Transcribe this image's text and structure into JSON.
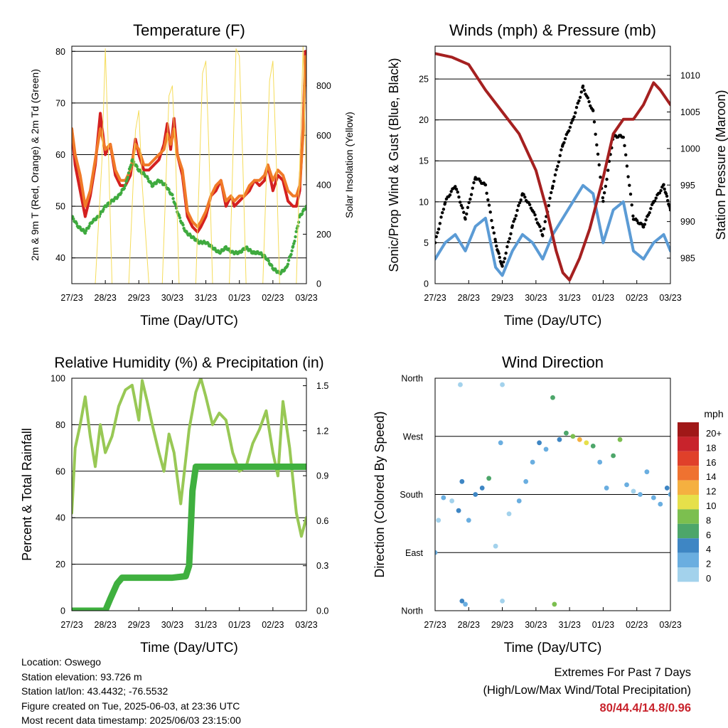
{
  "chart_data": [
    {
      "type": "line",
      "title": "Temperature (F)",
      "xlabel": "Time (Day/UTC)",
      "ylabel": "2m & 9m T (Red, Orange) & 2m Td (Green)",
      "y2label": "Solar Insolation (Yellow)",
      "x_ticks": [
        "27/23",
        "28/23",
        "29/23",
        "30/23",
        "31/23",
        "01/23",
        "02/23",
        "03/23"
      ],
      "ylim": [
        35,
        81
      ],
      "y_ticks": [
        40,
        50,
        60,
        70,
        80
      ],
      "y2lim": [
        0,
        960
      ],
      "y2_ticks": [
        0,
        200,
        400,
        600,
        800
      ],
      "x_days": [
        0,
        7
      ],
      "grid": "horizontal",
      "series": [
        {
          "name": "2m T",
          "color": "#d42020",
          "axis": "left",
          "style": "line",
          "x": [
            0,
            0.1,
            0.25,
            0.4,
            0.55,
            0.7,
            0.85,
            1.0,
            1.15,
            1.3,
            1.45,
            1.6,
            1.75,
            1.9,
            2.0,
            2.15,
            2.3,
            2.45,
            2.6,
            2.75,
            2.85,
            2.95,
            3.05,
            3.15,
            3.3,
            3.45,
            3.6,
            3.75,
            3.85,
            4.0,
            4.15,
            4.3,
            4.45,
            4.6,
            4.75,
            4.85,
            5.0,
            5.15,
            5.3,
            5.45,
            5.6,
            5.75,
            5.85,
            6.0,
            6.15,
            6.3,
            6.45,
            6.6,
            6.7,
            6.8,
            6.9,
            6.97,
            7.0
          ],
          "y": [
            65,
            58,
            53,
            48,
            52,
            58,
            68,
            60,
            62,
            56,
            54,
            54,
            56,
            63,
            60,
            57,
            57,
            58,
            59,
            62,
            66,
            61,
            67,
            60,
            56,
            48,
            46,
            45,
            46,
            48,
            52,
            53,
            55,
            50,
            52,
            50,
            51,
            52,
            53,
            55,
            54,
            55,
            58,
            53,
            56,
            55,
            51,
            50,
            50,
            53,
            65,
            80,
            77
          ]
        },
        {
          "name": "9m T",
          "color": "#f07a28",
          "axis": "left",
          "style": "line",
          "x": [
            0,
            0.1,
            0.25,
            0.4,
            0.55,
            0.7,
            0.85,
            1.0,
            1.15,
            1.3,
            1.45,
            1.6,
            1.75,
            1.9,
            2.0,
            2.15,
            2.3,
            2.45,
            2.6,
            2.75,
            2.85,
            2.95,
            3.05,
            3.15,
            3.3,
            3.45,
            3.6,
            3.75,
            3.85,
            4.0,
            4.15,
            4.3,
            4.45,
            4.6,
            4.75,
            4.85,
            5.0,
            5.15,
            5.3,
            5.45,
            5.6,
            5.75,
            5.85,
            6.0,
            6.15,
            6.3,
            6.45,
            6.6,
            6.7,
            6.8,
            6.9,
            6.97,
            7.0
          ],
          "y": [
            65,
            60,
            56,
            50,
            53,
            59,
            65,
            61,
            62,
            57,
            55,
            55,
            57,
            62,
            61,
            58,
            58,
            59,
            60,
            61,
            64,
            62,
            65,
            60,
            57,
            49,
            47,
            46,
            47,
            49,
            52,
            54,
            55,
            51,
            52,
            51,
            52,
            52,
            54,
            55,
            55,
            56,
            58,
            55,
            57,
            56,
            53,
            52,
            52,
            54,
            64,
            79,
            76
          ]
        },
        {
          "name": "2m Td",
          "color": "#3faa3f",
          "axis": "left",
          "style": "dots",
          "x": [
            0,
            0.2,
            0.4,
            0.6,
            0.8,
            1.0,
            1.2,
            1.4,
            1.6,
            1.8,
            2.0,
            2.2,
            2.4,
            2.6,
            2.8,
            3.0,
            3.2,
            3.4,
            3.6,
            3.8,
            4.0,
            4.2,
            4.4,
            4.6,
            4.8,
            5.0,
            5.2,
            5.4,
            5.6,
            5.8,
            6.0,
            6.2,
            6.4,
            6.6,
            6.8,
            7.0
          ],
          "y": [
            48,
            46,
            45,
            47,
            48,
            50,
            51,
            52,
            54,
            59,
            57,
            56,
            54,
            55,
            54,
            52,
            48,
            45,
            44,
            43,
            43,
            42,
            41,
            42,
            41,
            41,
            42,
            41,
            41,
            40,
            38,
            37,
            38,
            42,
            48,
            50
          ]
        },
        {
          "name": "Solar Insolation",
          "color": "#f5dc5a",
          "axis": "right",
          "style": "thin",
          "x": [
            0,
            0.2,
            0.5,
            0.7,
            0.9,
            1.0,
            1.1,
            1.2,
            1.5,
            1.7,
            1.9,
            2.0,
            2.1,
            2.3,
            2.5,
            2.7,
            2.9,
            3.0,
            3.1,
            3.2,
            3.5,
            3.7,
            3.9,
            4.0,
            4.1,
            4.2,
            4.5,
            4.7,
            4.9,
            5.0,
            5.1,
            5.2,
            5.5,
            5.7,
            5.9,
            6.0,
            6.1,
            6.2,
            6.5,
            6.7,
            6.9,
            7.0
          ],
          "y": [
            0,
            0,
            0,
            0,
            500,
            950,
            500,
            0,
            0,
            0,
            620,
            700,
            400,
            0,
            0,
            0,
            760,
            800,
            500,
            0,
            0,
            0,
            850,
            900,
            500,
            0,
            0,
            0,
            950,
            920,
            500,
            0,
            0,
            0,
            820,
            900,
            500,
            0,
            0,
            0,
            960,
            400
          ]
        }
      ]
    },
    {
      "type": "line",
      "title": "Winds (mph) & Pressure (mb)",
      "xlabel": "Time (Day/UTC)",
      "ylabel": "Sonic/Prop Wind & Gust (Blue, Black)",
      "y2label": "Station Pressure (Maroon)",
      "x_ticks": [
        "27/23",
        "28/23",
        "29/23",
        "30/23",
        "31/23",
        "01/23",
        "02/23",
        "03/23"
      ],
      "ylim": [
        0,
        29
      ],
      "y_ticks": [
        0,
        5,
        10,
        15,
        20,
        25
      ],
      "y2lim": [
        981.5,
        1014
      ],
      "y2_ticks": [
        985,
        990,
        995,
        1000,
        1005,
        1010
      ],
      "x_days": [
        0,
        7
      ],
      "grid": "horizontal",
      "series": [
        {
          "name": "Wind",
          "color": "#5b9bd5",
          "axis": "left",
          "style": "line",
          "x": [
            0,
            0.3,
            0.6,
            0.9,
            1.2,
            1.5,
            1.8,
            2.0,
            2.3,
            2.6,
            2.9,
            3.2,
            3.5,
            3.8,
            4.1,
            4.4,
            4.7,
            5.0,
            5.3,
            5.6,
            5.9,
            6.2,
            6.5,
            6.8,
            7.0
          ],
          "y": [
            3,
            5,
            6,
            4,
            7,
            8,
            2,
            1,
            4,
            6,
            5,
            3,
            6,
            8,
            10,
            12,
            11,
            5,
            9,
            10,
            4,
            3,
            5,
            6,
            4
          ]
        },
        {
          "name": "Gust",
          "color": "#000000",
          "axis": "left",
          "style": "dots",
          "x": [
            0,
            0.3,
            0.6,
            0.9,
            1.2,
            1.5,
            1.8,
            2.0,
            2.3,
            2.6,
            2.9,
            3.2,
            3.5,
            3.8,
            4.1,
            4.4,
            4.7,
            5.0,
            5.3,
            5.6,
            5.9,
            6.2,
            6.5,
            6.8,
            7.0
          ],
          "y": [
            5,
            10,
            12,
            8,
            13,
            12,
            5,
            2,
            7,
            11,
            9,
            6,
            12,
            17,
            20,
            24,
            21,
            10,
            18,
            18,
            8,
            7,
            10,
            12,
            9
          ]
        },
        {
          "name": "Station Pressure",
          "color": "#a52020",
          "axis": "right",
          "style": "line",
          "x": [
            0,
            0.5,
            1.0,
            1.5,
            2.0,
            2.5,
            3.0,
            3.3,
            3.6,
            3.8,
            4.0,
            4.3,
            4.6,
            5.0,
            5.3,
            5.6,
            5.9,
            6.2,
            6.5,
            6.7,
            7.0
          ],
          "y": [
            1013,
            1012.5,
            1011.5,
            1008,
            1005,
            1002,
            997,
            992,
            986,
            983,
            982,
            985,
            989,
            996,
            1002,
            1004,
            1004,
            1006,
            1009,
            1008,
            1006
          ]
        }
      ]
    },
    {
      "type": "line",
      "title": "Relative Humidity (%) & Precipitation (in)",
      "xlabel": "Time (Day/UTC)",
      "ylabel": "Percent & Total Rainfall",
      "x_ticks": [
        "27/23",
        "28/23",
        "29/23",
        "30/23",
        "31/23",
        "01/23",
        "02/23",
        "03/23"
      ],
      "ylim": [
        0,
        100
      ],
      "y_ticks": [
        0,
        20,
        40,
        60,
        80,
        100
      ],
      "y2lim": [
        0,
        1.55
      ],
      "y2_ticks": [
        "0.0",
        "0.3",
        "0.6",
        "0.9",
        "1.2",
        "1.5"
      ],
      "x_days": [
        0,
        7
      ],
      "grid": "horizontal",
      "series": [
        {
          "name": "Relative Humidity",
          "color": "#98c855",
          "axis": "left",
          "style": "line",
          "x": [
            0,
            0.1,
            0.25,
            0.4,
            0.55,
            0.7,
            0.85,
            1.0,
            1.2,
            1.4,
            1.6,
            1.8,
            2.0,
            2.1,
            2.25,
            2.4,
            2.6,
            2.75,
            2.9,
            3.05,
            3.25,
            3.5,
            3.7,
            3.85,
            4.0,
            4.2,
            4.4,
            4.6,
            4.8,
            5.0,
            5.2,
            5.4,
            5.6,
            5.8,
            6.0,
            6.15,
            6.3,
            6.5,
            6.7,
            6.85,
            7.0
          ],
          "y": [
            42,
            70,
            80,
            92,
            75,
            62,
            80,
            68,
            75,
            88,
            95,
            97,
            82,
            99,
            90,
            80,
            68,
            60,
            76,
            68,
            46,
            78,
            94,
            100,
            92,
            80,
            85,
            82,
            68,
            60,
            62,
            72,
            78,
            86,
            68,
            58,
            90,
            70,
            42,
            32,
            40
          ]
        },
        {
          "name": "Total Precipitation",
          "color": "#3fb03f",
          "axis": "right",
          "style": "thick",
          "x": [
            0,
            0.5,
            1.0,
            1.15,
            1.35,
            1.5,
            2.0,
            2.5,
            3.0,
            3.4,
            3.5,
            3.6,
            3.7,
            4.0,
            5.0,
            6.0,
            7.0
          ],
          "y": [
            0,
            0,
            0,
            0.08,
            0.18,
            0.22,
            0.22,
            0.22,
            0.22,
            0.23,
            0.3,
            0.8,
            0.96,
            0.96,
            0.96,
            0.96,
            0.96
          ]
        }
      ]
    },
    {
      "type": "scatter",
      "title": "Wind Direction",
      "xlabel": "Time (Day/UTC)",
      "ylabel": "Direction (Colored By Speed)",
      "x_ticks": [
        "27/23",
        "28/23",
        "29/23",
        "30/23",
        "31/23",
        "01/23",
        "02/23",
        "03/23"
      ],
      "y_ticks": [
        "North",
        "East",
        "South",
        "West",
        "North"
      ],
      "ylim": [
        0,
        360
      ],
      "x_days": [
        0,
        7
      ],
      "grid": "horizontal",
      "colorbar": {
        "title": "mph",
        "labels": [
          "0",
          "2",
          "4",
          "6",
          "8",
          "10",
          "12",
          "14",
          "16",
          "18",
          "20+"
        ],
        "colors": [
          "#cfe9f6",
          "#a3d2ec",
          "#6aaee0",
          "#3e86c4",
          "#4da66a",
          "#7cbf4f",
          "#e6e04a",
          "#f5b040",
          "#ef7230",
          "#e0402a",
          "#c8232c",
          "#a01818"
        ]
      },
      "points": [
        {
          "x": 0.0,
          "dir": 90,
          "speed": 4
        },
        {
          "x": 0.1,
          "dir": 140,
          "speed": 3
        },
        {
          "x": 0.25,
          "dir": 175,
          "speed": 4
        },
        {
          "x": 0.5,
          "dir": 170,
          "speed": 3
        },
        {
          "x": 0.7,
          "dir": 155,
          "speed": 6
        },
        {
          "x": 0.8,
          "dir": 200,
          "speed": 7
        },
        {
          "x": 0.75,
          "dir": 350,
          "speed": 2
        },
        {
          "x": 0.8,
          "dir": 15,
          "speed": 6
        },
        {
          "x": 0.9,
          "dir": 10,
          "speed": 5
        },
        {
          "x": 1.0,
          "dir": 140,
          "speed": 5
        },
        {
          "x": 1.2,
          "dir": 180,
          "speed": 7
        },
        {
          "x": 1.4,
          "dir": 190,
          "speed": 6
        },
        {
          "x": 1.6,
          "dir": 205,
          "speed": 8
        },
        {
          "x": 1.8,
          "dir": 100,
          "speed": 2
        },
        {
          "x": 1.95,
          "dir": 260,
          "speed": 4
        },
        {
          "x": 2.0,
          "dir": 350,
          "speed": 3
        },
        {
          "x": 2.0,
          "dir": 15,
          "speed": 2
        },
        {
          "x": 2.2,
          "dir": 150,
          "speed": 2
        },
        {
          "x": 2.5,
          "dir": 170,
          "speed": 4
        },
        {
          "x": 2.7,
          "dir": 200,
          "speed": 5
        },
        {
          "x": 2.9,
          "dir": 230,
          "speed": 5
        },
        {
          "x": 3.1,
          "dir": 260,
          "speed": 6
        },
        {
          "x": 3.3,
          "dir": 250,
          "speed": 5
        },
        {
          "x": 3.5,
          "dir": 330,
          "speed": 8
        },
        {
          "x": 3.55,
          "dir": 10,
          "speed": 10
        },
        {
          "x": 3.7,
          "dir": 265,
          "speed": 7
        },
        {
          "x": 3.9,
          "dir": 275,
          "speed": 9
        },
        {
          "x": 4.1,
          "dir": 270,
          "speed": 11
        },
        {
          "x": 4.3,
          "dir": 265,
          "speed": 14
        },
        {
          "x": 4.5,
          "dir": 260,
          "speed": 12
        },
        {
          "x": 4.7,
          "dir": 255,
          "speed": 9
        },
        {
          "x": 4.9,
          "dir": 230,
          "speed": 5
        },
        {
          "x": 5.1,
          "dir": 190,
          "speed": 4
        },
        {
          "x": 5.3,
          "dir": 240,
          "speed": 8
        },
        {
          "x": 5.5,
          "dir": 265,
          "speed": 10
        },
        {
          "x": 5.7,
          "dir": 195,
          "speed": 4
        },
        {
          "x": 5.9,
          "dir": 185,
          "speed": 3
        },
        {
          "x": 6.1,
          "dir": 180,
          "speed": 4
        },
        {
          "x": 6.3,
          "dir": 215,
          "speed": 5
        },
        {
          "x": 6.5,
          "dir": 175,
          "speed": 4
        },
        {
          "x": 6.7,
          "dir": 165,
          "speed": 5
        },
        {
          "x": 6.9,
          "dir": 190,
          "speed": 6
        },
        {
          "x": 7.0,
          "dir": 180,
          "speed": 4
        }
      ]
    }
  ],
  "info": {
    "location": "Location: Oswego",
    "elevation": "Station elevation: 93.726 m",
    "latlon": "Station lat/lon: 43.4432; -76.5532",
    "created": "Figure created on Tue, 2025-06-03, at 23:36 UTC",
    "timestamp": "Most recent data timestamp: 2025/06/03 23:15:00"
  },
  "extremes": {
    "title": "Extremes For Past 7 Days",
    "subtitle": "(High/Low/Max Wind/Total Precipitation)",
    "values": "80/44.4/14.8/0.96"
  }
}
